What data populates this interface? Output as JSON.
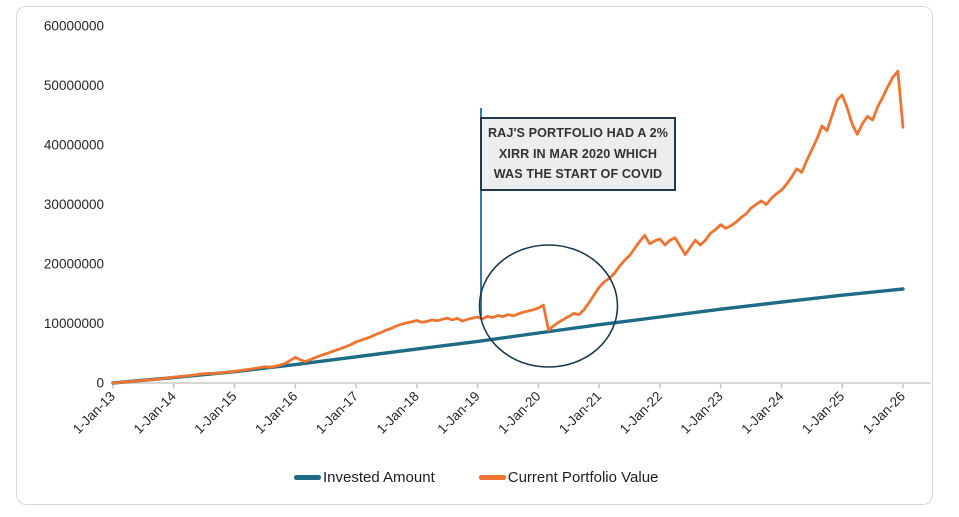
{
  "chart_data": {
    "type": "line",
    "title": "",
    "xlabel": "",
    "ylabel": "",
    "grid": "off",
    "legend_position": "bottom-center",
    "ylim": [
      0,
      60000000
    ],
    "y_tick_values": [
      0,
      10000000,
      20000000,
      30000000,
      40000000,
      50000000,
      60000000
    ],
    "x_tick_labels": [
      "1-Jan-13",
      "1-Jan-14",
      "1-Jan-15",
      "1-Jan-16",
      "1-Jan-17",
      "1-Jan-18",
      "1-Jan-19",
      "1-Jan-20",
      "1-Jan-21",
      "1-Jan-22",
      "1-Jan-23",
      "1-Jan-24",
      "1-Jan-25",
      "1-Jan-26"
    ],
    "x_range_months": 156,
    "series": [
      {
        "name": "Invested Amount",
        "color": "#1E6B87",
        "points_interval_months": 12,
        "values_millions": [
          0,
          0.9,
          1.9,
          3.1,
          4.4,
          5.7,
          7.0,
          8.4,
          9.8,
          11.1,
          12.4,
          13.6,
          14.75,
          15.8
        ]
      },
      {
        "name": "Current Portfolio Value",
        "color": "#ED7431",
        "points_interval_months": 1,
        "values_millions": [
          0.0,
          0.07,
          0.14,
          0.21,
          0.28,
          0.36,
          0.44,
          0.5,
          0.57,
          0.66,
          0.78,
          0.9,
          0.98,
          1.06,
          1.15,
          1.25,
          1.34,
          1.48,
          1.55,
          1.62,
          1.58,
          1.68,
          1.78,
          1.85,
          1.95,
          2.08,
          2.2,
          2.32,
          2.45,
          2.58,
          2.72,
          2.65,
          2.82,
          3.0,
          3.3,
          3.8,
          4.3,
          3.9,
          3.6,
          3.95,
          4.3,
          4.6,
          4.9,
          5.2,
          5.5,
          5.8,
          6.1,
          6.45,
          6.9,
          7.2,
          7.5,
          7.8,
          8.2,
          8.5,
          8.9,
          9.2,
          9.6,
          9.9,
          10.1,
          10.3,
          10.5,
          10.2,
          10.35,
          10.6,
          10.45,
          10.7,
          10.9,
          10.6,
          10.85,
          10.4,
          10.7,
          10.9,
          11.1,
          10.8,
          11.2,
          11.0,
          11.35,
          11.15,
          11.5,
          11.3,
          11.6,
          11.9,
          12.1,
          12.3,
          12.6,
          13.1,
          8.9,
          9.6,
          10.2,
          10.7,
          11.2,
          11.7,
          11.5,
          12.3,
          13.5,
          14.8,
          16.1,
          17.0,
          17.6,
          18.4,
          19.6,
          20.6,
          21.4,
          22.6,
          23.8,
          24.8,
          23.4,
          23.9,
          24.2,
          23.2,
          24.0,
          24.4,
          23.0,
          21.6,
          22.8,
          24.0,
          23.2,
          24.0,
          25.2,
          25.8,
          26.6,
          26.0,
          26.4,
          27.0,
          27.8,
          28.4,
          29.4,
          30.0,
          30.6,
          30.0,
          31.0,
          31.8,
          32.4,
          33.4,
          34.6,
          36.0,
          35.4,
          37.4,
          39.2,
          41.0,
          43.2,
          42.4,
          45.0,
          47.6,
          48.4,
          46.2,
          43.4,
          41.8,
          43.6,
          44.8,
          44.2,
          46.4,
          48.0,
          49.8,
          51.4,
          52.4,
          43.0
        ]
      }
    ],
    "annotation": {
      "text_lines": [
        "RAJ'S PORTFOLIO HAD A 2%",
        "XIRR IN MAR 2020 WHICH",
        "WAS THE START OF COVID"
      ],
      "callout_target": "Mar-2020 dip where portfolio value touches invested amount",
      "leader_color": "#2E7FA8",
      "circle_color": "#1B3A4F",
      "box_background": "#EDEDED",
      "box_border_color": "#22394B"
    },
    "colors": {
      "invested_line": "#1E6B87",
      "portfolio_line": "#ED7431",
      "axis_gray": "#C9C9C9",
      "frame_border": "#D9D9D9",
      "label_text": "#262626"
    }
  }
}
